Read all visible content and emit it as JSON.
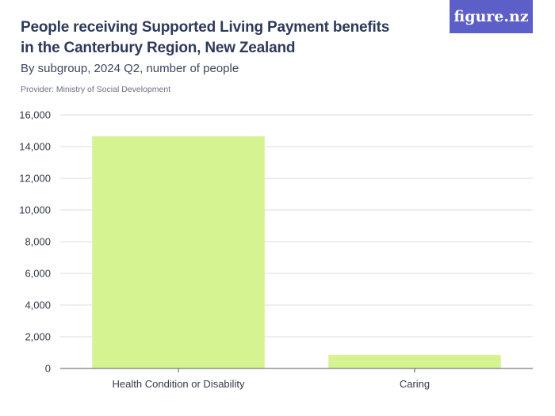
{
  "header": {
    "title": "People receiving Supported Living Payment benefits in the Canterbury Region, New Zealand",
    "subtitle": "By subgroup, 2024 Q2, number of people",
    "provider": "Provider: Ministry of Social Development",
    "logo": "figure.nz"
  },
  "chart_data": {
    "type": "bar",
    "categories": [
      "Health Condition or Disability",
      "Caring"
    ],
    "values": [
      14650,
      850
    ],
    "ylim": [
      0,
      16000
    ],
    "yticks": [
      0,
      2000,
      4000,
      6000,
      8000,
      10000,
      12000,
      14000,
      16000
    ],
    "ytick_labels": [
      "0",
      "2,000",
      "4,000",
      "6,000",
      "8,000",
      "10,000",
      "12,000",
      "14,000",
      "16,000"
    ],
    "grid": true,
    "bar_color": "#d6f392"
  }
}
